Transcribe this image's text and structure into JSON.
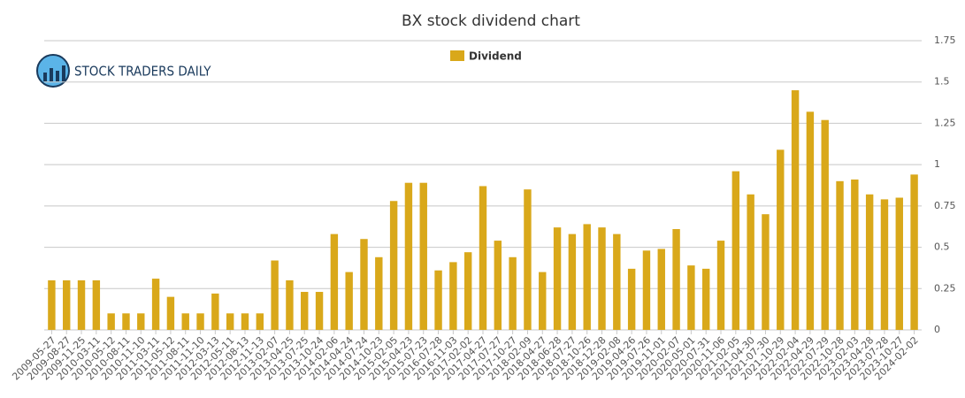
{
  "logo": "STOCK TRADERS DAILY",
  "chart_data": {
    "type": "bar",
    "title": "BX stock dividend chart",
    "series": [
      {
        "name": "Dividend",
        "color": "#d9a81a",
        "values": [
          0.3,
          0.3,
          0.3,
          0.3,
          0.1,
          0.1,
          0.1,
          0.31,
          0.2,
          0.1,
          0.1,
          0.22,
          0.1,
          0.1,
          0.1,
          0.42,
          0.3,
          0.23,
          0.23,
          0.58,
          0.35,
          0.55,
          0.44,
          0.78,
          0.89,
          0.89,
          0.36,
          0.41,
          0.47,
          0.87,
          0.54,
          0.44,
          0.85,
          0.35,
          0.62,
          0.58,
          0.64,
          0.62,
          0.58,
          0.37,
          0.48,
          0.49,
          0.61,
          0.39,
          0.37,
          0.54,
          0.96,
          0.82,
          0.7,
          1.09,
          1.45,
          1.32,
          1.27,
          0.9,
          0.91,
          0.82,
          0.79,
          0.8,
          0.94
        ]
      }
    ],
    "categories": [
      "2009-05-27",
      "2009-08-27",
      "2009-11-25",
      "2010-03-11",
      "2010-05-12",
      "2010-08-11",
      "2010-11-10",
      "2011-03-11",
      "2011-05-12",
      "2011-08-11",
      "2011-11-10",
      "2012-03-13",
      "2012-05-11",
      "2012-08-13",
      "2012-11-13",
      "2013-02-07",
      "2013-04-25",
      "2013-07-25",
      "2013-10-24",
      "2014-02-06",
      "2014-04-24",
      "2014-07-24",
      "2014-10-23",
      "2015-02-05",
      "2015-04-23",
      "2015-07-23",
      "2016-07-28",
      "2016-11-03",
      "2017-02-02",
      "2017-04-27",
      "2017-07-27",
      "2017-10-27",
      "2018-02-09",
      "2018-04-27",
      "2018-06-28",
      "2018-07-27",
      "2018-10-26",
      "2018-12-28",
      "2019-02-08",
      "2019-04-26",
      "2019-07-26",
      "2019-11-01",
      "2020-02-07",
      "2020-05-01",
      "2020-07-31",
      "2020-11-06",
      "2021-02-05",
      "2021-04-30",
      "2021-07-30",
      "2021-10-29",
      "2022-02-04",
      "2022-04-29",
      "2022-07-29",
      "2022-10-28",
      "2023-02-03",
      "2023-04-28",
      "2023-07-28",
      "2023-10-27",
      "2024-02-02"
    ],
    "ylim": [
      0,
      1.75
    ],
    "yticks": [
      0,
      0.25,
      0.5,
      0.75,
      1,
      1.25,
      1.5,
      1.75
    ],
    "grid": true,
    "legend": "top"
  }
}
